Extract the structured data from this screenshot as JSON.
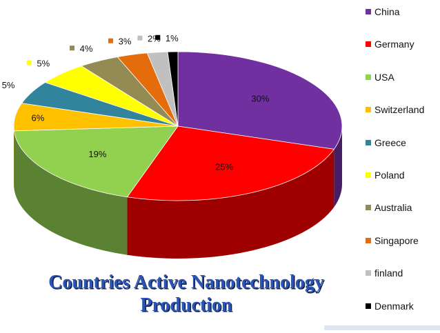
{
  "chart_data": {
    "type": "pie",
    "title_lines": [
      "Countries Active Nanotechnology",
      "Production"
    ],
    "categories": [
      "China",
      "Germany",
      "USA",
      "Switzerland",
      "Greece",
      "Poland",
      "Australia",
      "Singapore",
      "finland",
      "Denmark"
    ],
    "values": [
      30,
      25,
      19,
      6,
      5,
      5,
      4,
      3,
      2,
      1
    ],
    "value_labels": [
      "30%",
      "25%",
      "19%",
      "6%",
      "5%",
      "5%",
      "4%",
      "3%",
      "2%",
      "1%"
    ],
    "colors": [
      "#7030a0",
      "#ff0000",
      "#92d050",
      "#ffc000",
      "#31849b",
      "#ffff00",
      "#948a54",
      "#e46c0a",
      "#c0c0c0",
      "#000000"
    ],
    "legend_position": "right",
    "style": "3d"
  }
}
